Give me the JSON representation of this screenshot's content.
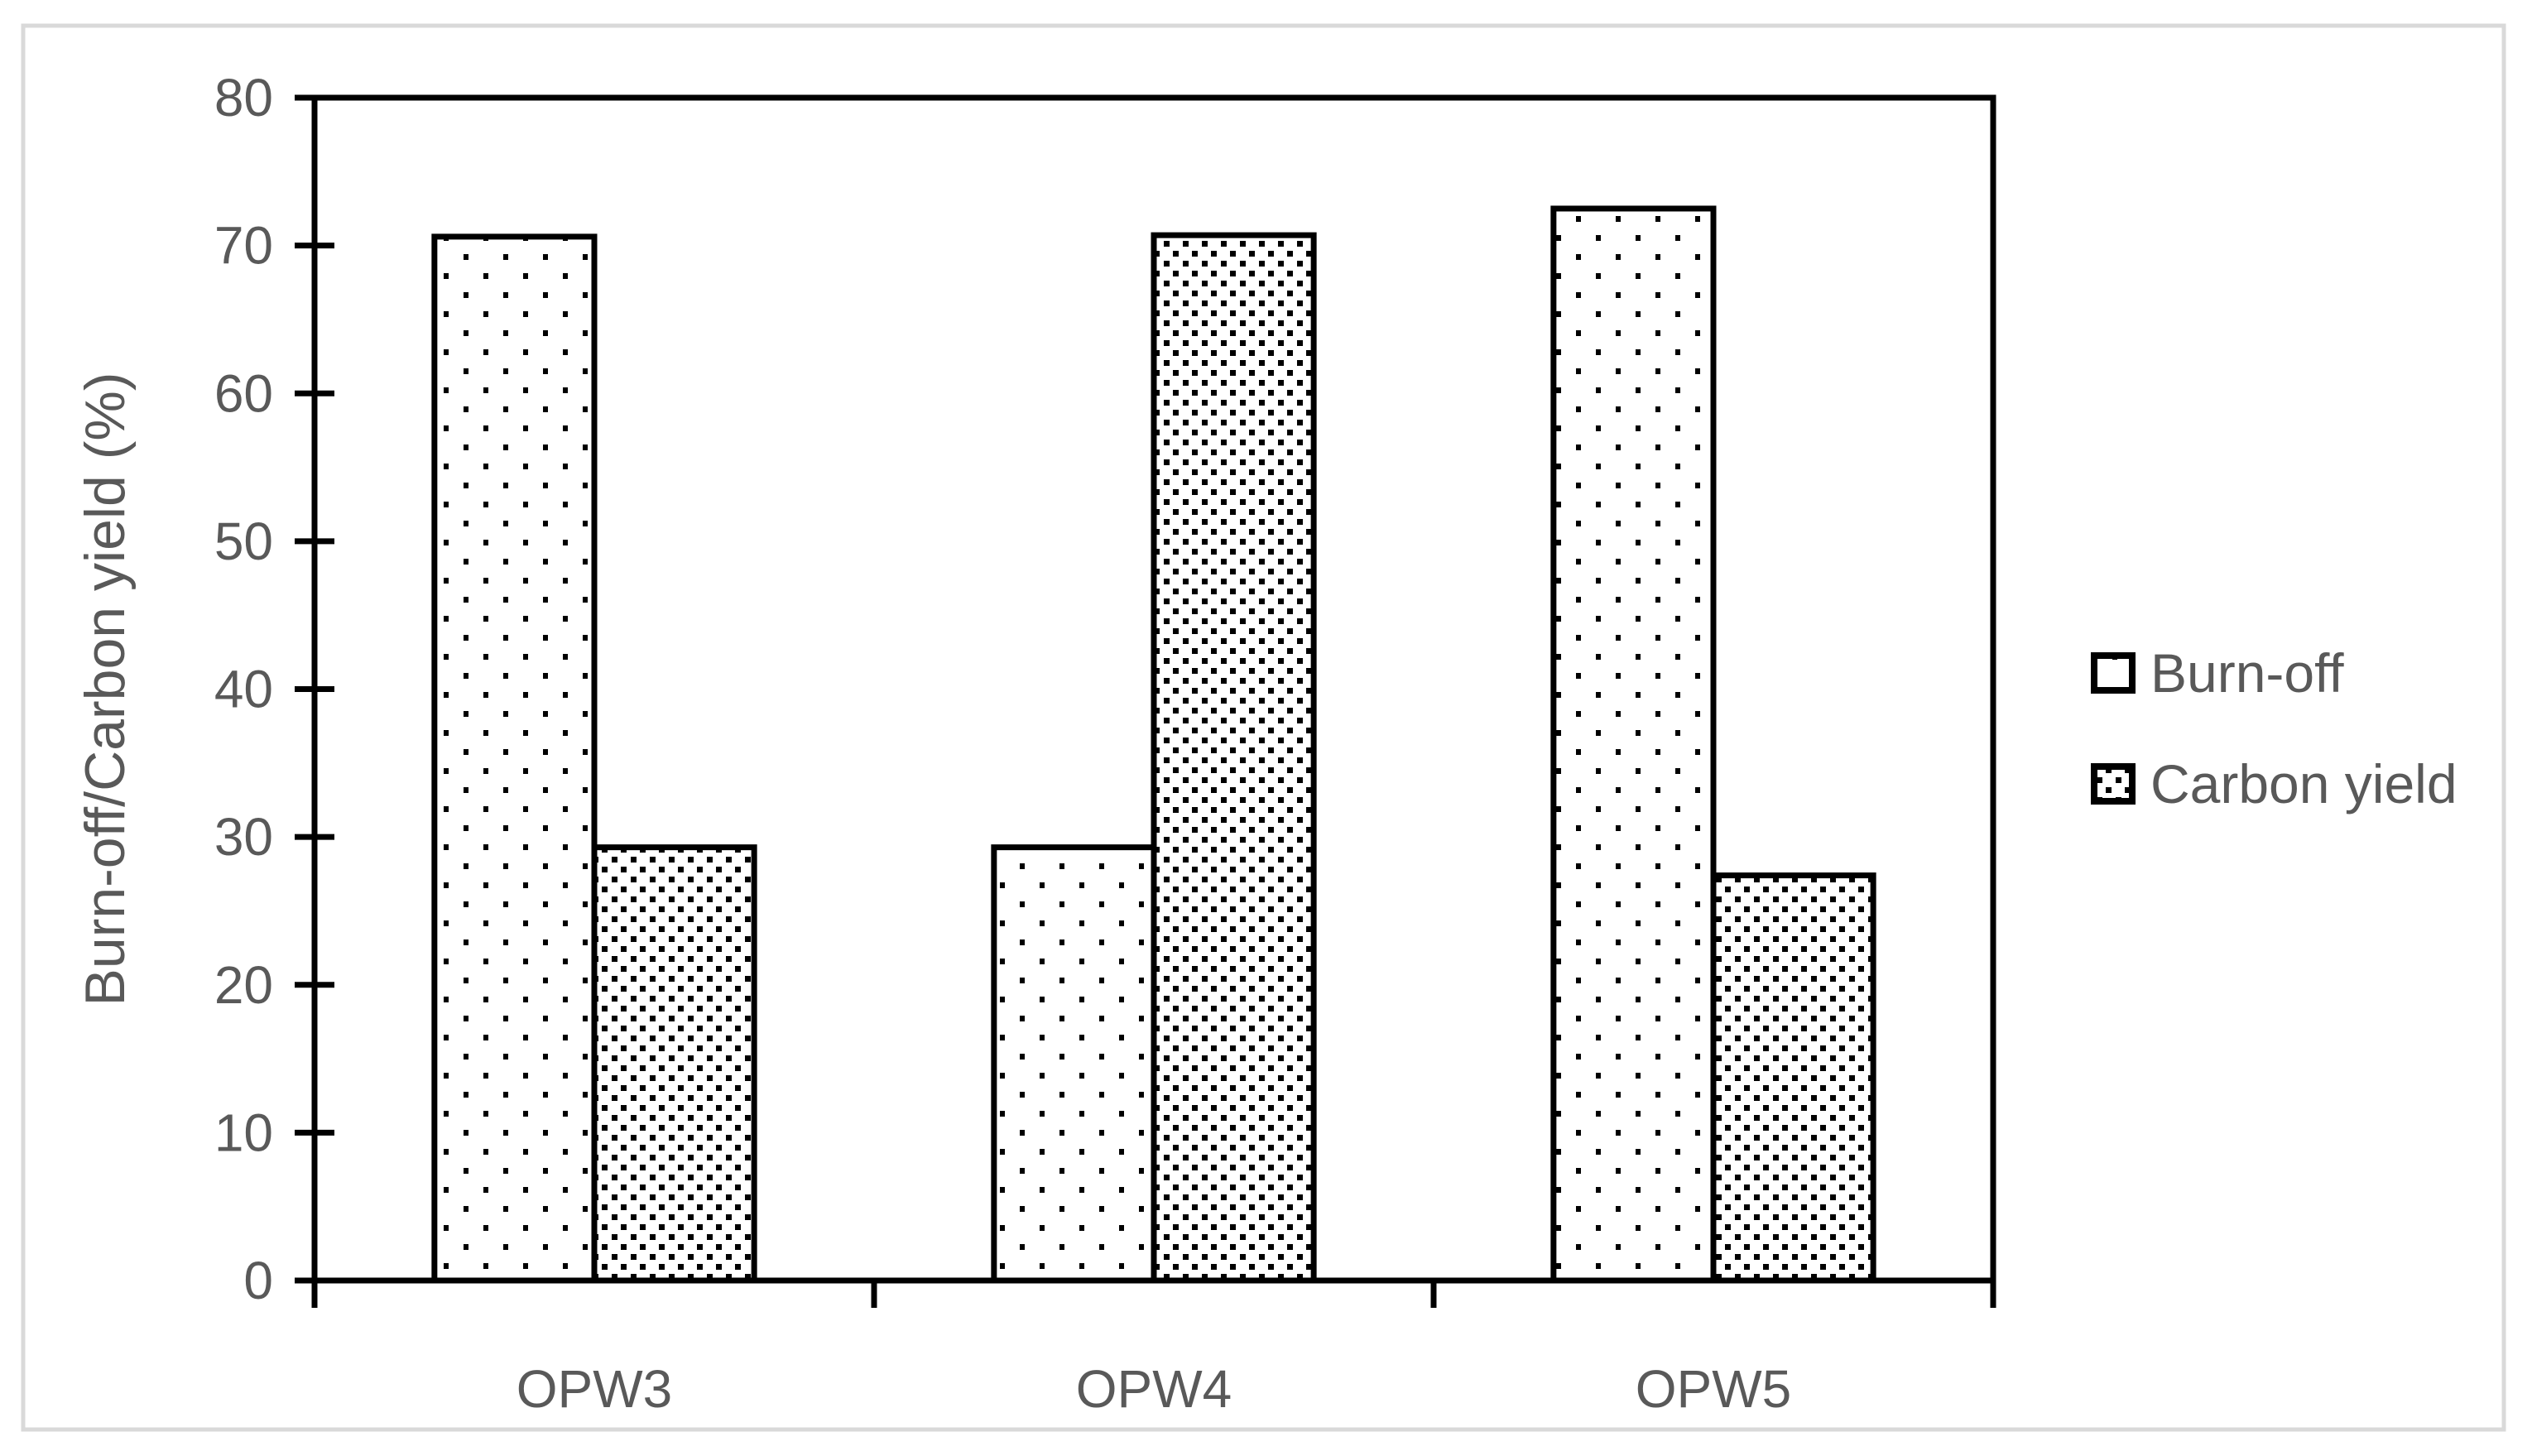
{
  "colors": {
    "background": "#ffffff",
    "figure_border": "#d9d9d9",
    "axis": "#000000",
    "text": "#595959",
    "bar_fill": "#ffffff",
    "pattern_dot": "#000000"
  },
  "chart_data": {
    "type": "bar",
    "title": "",
    "xlabel": "",
    "ylabel": "Burn-off/Carbon yield (%)",
    "categories": [
      "OPW3",
      "OPW4",
      "OPW5"
    ],
    "series": [
      {
        "name": "Burn-off",
        "pattern": "sparse-dots",
        "values": [
          70.6,
          29.3,
          72.5
        ]
      },
      {
        "name": "Carbon yield",
        "pattern": "dense-dots",
        "values": [
          29.3,
          70.7,
          27.4
        ]
      }
    ],
    "ylim": [
      0,
      80
    ],
    "ytick_step": 10,
    "yticks": [
      0,
      10,
      20,
      30,
      40,
      50,
      60,
      70,
      80
    ],
    "grid": false,
    "legend": {
      "position": "right",
      "entries": [
        "Burn-off",
        "Carbon yield"
      ]
    }
  }
}
